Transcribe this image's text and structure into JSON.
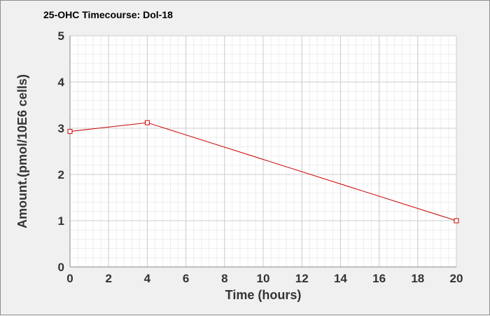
{
  "chart_data": {
    "type": "line",
    "title": "25-OHC Timecourse: Dol-18",
    "xlabel": "Time (hours)",
    "ylabel": "Amount.(pmol/10E6 cells)",
    "xlim": [
      0,
      20
    ],
    "ylim": [
      0,
      5
    ],
    "x_ticks": [
      0,
      2,
      4,
      6,
      8,
      10,
      12,
      14,
      16,
      18,
      20
    ],
    "y_ticks": [
      0,
      1,
      2,
      3,
      4,
      5
    ],
    "grid": true,
    "legend": "none",
    "series": [
      {
        "color": "#cc0000",
        "marker": "open-square",
        "x": [
          0,
          4,
          20
        ],
        "y": [
          2.93,
          3.12,
          1.0
        ]
      }
    ]
  }
}
